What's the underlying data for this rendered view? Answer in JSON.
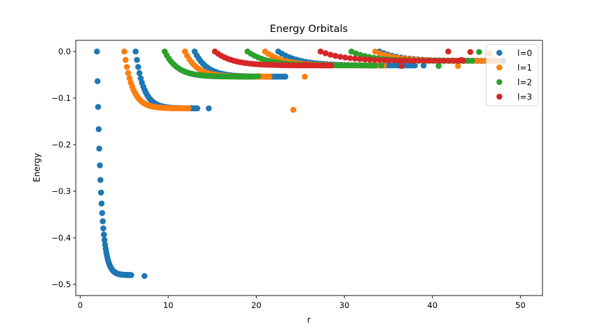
{
  "chart_data": {
    "type": "scatter",
    "title": "Energy Orbitals",
    "xlabel": "r",
    "ylabel": "Energy",
    "xlim": [
      -0.5,
      52.5
    ],
    "ylim": [
      -0.524,
      0.024
    ],
    "xticks": [
      0,
      10,
      20,
      30,
      40,
      50
    ],
    "xtick_labels": [
      "0",
      "10",
      "20",
      "30",
      "40",
      "50"
    ],
    "yticks": [
      0.0,
      -0.1,
      -0.2,
      -0.3,
      -0.4,
      -0.5
    ],
    "ytick_labels": [
      "0.0",
      "−0.1",
      "−0.2",
      "−0.3",
      "−0.4",
      "−0.5"
    ],
    "grid": false,
    "legend_position": "top-right",
    "series": [
      {
        "name": "l=0",
        "color": "#1f77b4",
        "curves": [
          {
            "energy": -0.48,
            "r_start": 1.9,
            "r_end": 5.8,
            "n": 60,
            "curvature": 2.8
          },
          {
            "energy": -0.122,
            "r_start": 6.3,
            "r_end": 13.3,
            "n": 50,
            "curvature": 2.6
          },
          {
            "energy": -0.054,
            "r_start": 13.0,
            "r_end": 23.2,
            "n": 45,
            "curvature": 2.4
          },
          {
            "energy": -0.03,
            "r_start": 22.5,
            "r_end": 38.0,
            "n": 40,
            "curvature": 2.2
          },
          {
            "energy": -0.02,
            "r_start": 34.0,
            "r_end": 48.0,
            "n": 30,
            "curvature": 2.0
          }
        ],
        "points": [
          {
            "x": 7.3,
            "y": -0.482
          },
          {
            "x": 14.6,
            "y": -0.122
          },
          {
            "x": 23.3,
            "y": -0.054
          },
          {
            "x": 36.2,
            "y": -0.03
          },
          {
            "x": 39.0,
            "y": -0.03
          }
        ]
      },
      {
        "name": "l=1",
        "color": "#ff7f0e",
        "curves": [
          {
            "energy": -0.122,
            "r_start": 5.0,
            "r_end": 12.3,
            "n": 50,
            "curvature": 2.6
          },
          {
            "energy": -0.054,
            "r_start": 11.9,
            "r_end": 21.5,
            "n": 40,
            "curvature": 2.4
          },
          {
            "energy": -0.03,
            "r_start": 21.0,
            "r_end": 34.5,
            "n": 35,
            "curvature": 2.2
          },
          {
            "energy": -0.02,
            "r_start": 33.5,
            "r_end": 47.5,
            "n": 28,
            "curvature": 2.0
          }
        ],
        "points": [
          {
            "x": 24.2,
            "y": -0.125
          },
          {
            "x": 25.5,
            "y": -0.054
          },
          {
            "x": 42.9,
            "y": -0.031
          },
          {
            "x": 46.5,
            "y": -0.005
          },
          {
            "x": 47.5,
            "y": -0.002
          }
        ]
      },
      {
        "name": "l=2",
        "color": "#2ca02c",
        "curves": [
          {
            "energy": -0.054,
            "r_start": 9.6,
            "r_end": 19.8,
            "n": 45,
            "curvature": 2.4
          },
          {
            "energy": -0.03,
            "r_start": 19.0,
            "r_end": 33.5,
            "n": 38,
            "curvature": 2.2
          },
          {
            "energy": -0.02,
            "r_start": 30.8,
            "r_end": 44.5,
            "n": 28,
            "curvature": 2.0
          }
        ],
        "points": [
          {
            "x": 18.8,
            "y": -0.054
          },
          {
            "x": 20.2,
            "y": -0.053
          },
          {
            "x": 34.2,
            "y": -0.03
          },
          {
            "x": 40.7,
            "y": -0.031
          },
          {
            "x": 45.3,
            "y": -0.001
          }
        ]
      },
      {
        "name": "l=3",
        "color": "#d62728",
        "curves": [
          {
            "energy": -0.03,
            "r_start": 15.3,
            "r_end": 28.5,
            "n": 38,
            "curvature": 2.2
          },
          {
            "energy": -0.02,
            "r_start": 27.3,
            "r_end": 43.5,
            "n": 30,
            "curvature": 2.0
          }
        ],
        "points": [
          {
            "x": 25.6,
            "y": -0.028
          },
          {
            "x": 36.5,
            "y": -0.031
          },
          {
            "x": 41.8,
            "y": 0.0
          },
          {
            "x": 43.3,
            "y": -0.018
          },
          {
            "x": 44.3,
            "y": -0.001
          }
        ]
      }
    ]
  }
}
